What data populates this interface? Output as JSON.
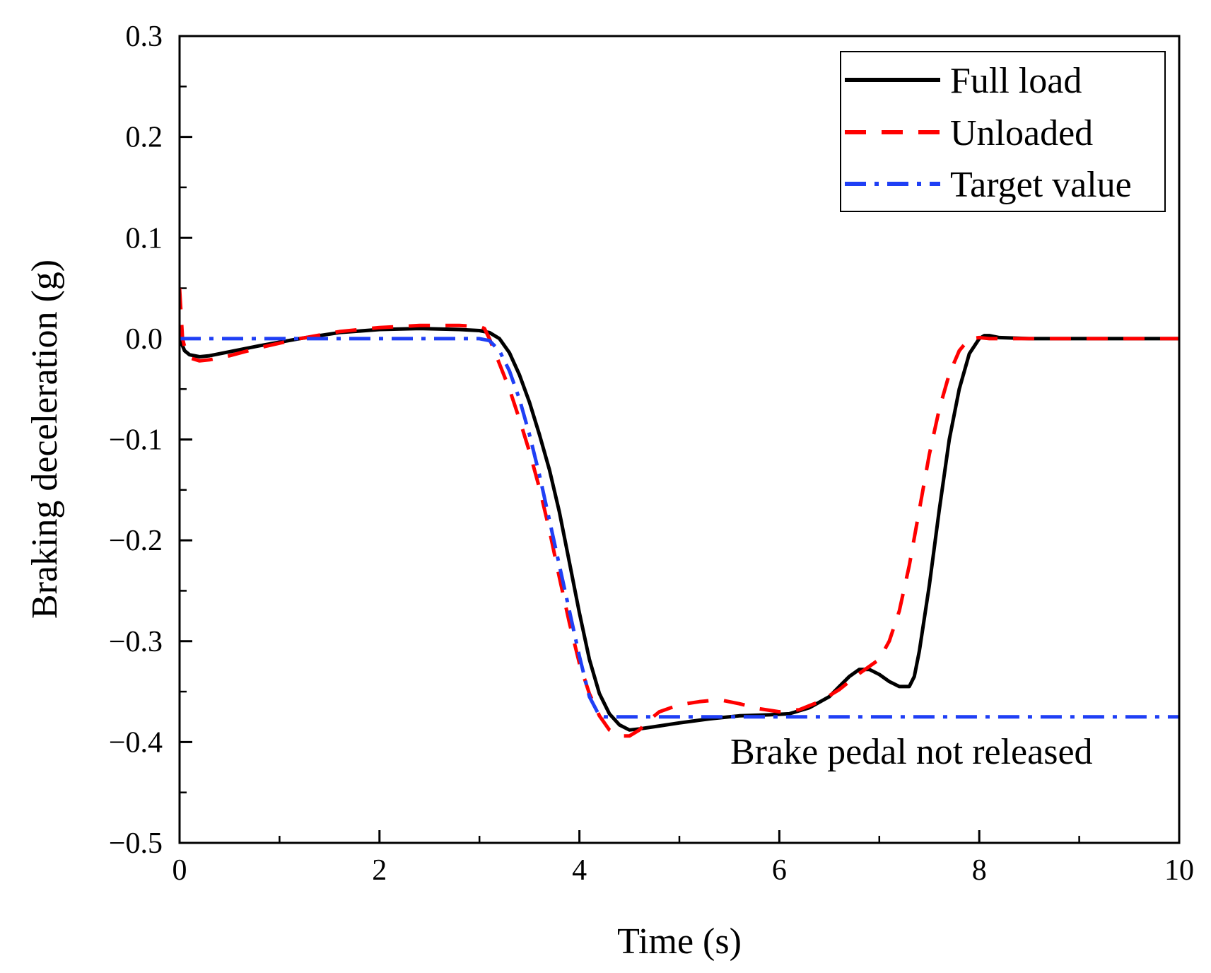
{
  "chart_data": {
    "type": "line",
    "title": "",
    "xlabel": "Time (s)",
    "ylabel": "Braking deceleration (g)",
    "xlim": [
      0,
      10
    ],
    "ylim": [
      -0.5,
      0.3
    ],
    "xticks": [
      0,
      2,
      4,
      6,
      8,
      10
    ],
    "xtick_labels": [
      "0",
      "2",
      "4",
      "6",
      "8",
      "10"
    ],
    "yticks": [
      0.3,
      0.2,
      0.1,
      0.0,
      -0.1,
      -0.2,
      -0.3,
      -0.4,
      -0.5
    ],
    "ytick_labels": [
      "0.3",
      "0.2",
      "0.1",
      "0.0",
      "−0.1",
      "−0.2",
      "−0.3",
      "−0.4",
      "−0.5"
    ],
    "grid": false,
    "legend_position": "top-right",
    "series": [
      {
        "name": "Full load",
        "color": "#000000",
        "style": "solid",
        "x": [
          0,
          0.05,
          0.1,
          0.2,
          0.3,
          0.5,
          0.8,
          1.2,
          1.6,
          2.0,
          2.4,
          2.8,
          3.0,
          3.1,
          3.2,
          3.3,
          3.4,
          3.5,
          3.6,
          3.7,
          3.8,
          3.9,
          4.0,
          4.1,
          4.2,
          4.3,
          4.4,
          4.5,
          4.6,
          4.8,
          5.0,
          5.3,
          5.6,
          5.9,
          6.1,
          6.3,
          6.5,
          6.6,
          6.7,
          6.8,
          6.9,
          7.0,
          7.1,
          7.2,
          7.3,
          7.35,
          7.4,
          7.5,
          7.6,
          7.7,
          7.8,
          7.9,
          8.0,
          8.05,
          8.1,
          8.2,
          8.5,
          9.0,
          9.5,
          10.0
        ],
        "y": [
          0.0,
          -0.012,
          -0.016,
          -0.018,
          -0.017,
          -0.013,
          -0.007,
          0.0,
          0.006,
          0.009,
          0.01,
          0.009,
          0.008,
          0.006,
          0.0,
          -0.014,
          -0.036,
          -0.063,
          -0.095,
          -0.13,
          -0.172,
          -0.222,
          -0.272,
          -0.318,
          -0.352,
          -0.372,
          -0.383,
          -0.388,
          -0.387,
          -0.384,
          -0.381,
          -0.377,
          -0.374,
          -0.373,
          -0.372,
          -0.366,
          -0.355,
          -0.345,
          -0.335,
          -0.328,
          -0.328,
          -0.333,
          -0.34,
          -0.345,
          -0.345,
          -0.335,
          -0.31,
          -0.245,
          -0.17,
          -0.1,
          -0.05,
          -0.015,
          0.0,
          0.003,
          0.003,
          0.001,
          0.0,
          0.0,
          0.0,
          0.0
        ]
      },
      {
        "name": "Unloaded",
        "color": "#ff0000",
        "style": "dashed",
        "x": [
          0,
          0.03,
          0.06,
          0.1,
          0.2,
          0.3,
          0.5,
          0.8,
          1.2,
          1.6,
          2.0,
          2.4,
          2.8,
          3.0,
          3.05,
          3.1,
          3.2,
          3.3,
          3.4,
          3.5,
          3.6,
          3.7,
          3.8,
          3.9,
          4.0,
          4.1,
          4.2,
          4.3,
          4.4,
          4.5,
          4.6,
          4.7,
          4.8,
          5.0,
          5.2,
          5.4,
          5.6,
          5.8,
          6.0,
          6.2,
          6.4,
          6.6,
          6.8,
          6.9,
          7.0,
          7.1,
          7.2,
          7.3,
          7.4,
          7.5,
          7.6,
          7.7,
          7.8,
          7.9,
          8.0,
          8.1,
          8.5,
          9.0,
          9.5,
          10.0
        ],
        "y": [
          0.05,
          0.0,
          -0.012,
          -0.019,
          -0.022,
          -0.021,
          -0.017,
          -0.009,
          0.0,
          0.007,
          0.011,
          0.013,
          0.013,
          0.012,
          0.01,
          0.0,
          -0.025,
          -0.05,
          -0.08,
          -0.112,
          -0.148,
          -0.19,
          -0.237,
          -0.282,
          -0.322,
          -0.352,
          -0.374,
          -0.388,
          -0.394,
          -0.394,
          -0.388,
          -0.378,
          -0.37,
          -0.363,
          -0.36,
          -0.358,
          -0.362,
          -0.367,
          -0.37,
          -0.368,
          -0.36,
          -0.348,
          -0.332,
          -0.325,
          -0.318,
          -0.3,
          -0.27,
          -0.225,
          -0.17,
          -0.115,
          -0.07,
          -0.035,
          -0.012,
          0.0,
          0.001,
          0.0,
          0.0,
          0.0,
          0.0,
          0.0
        ]
      },
      {
        "name": "Target value",
        "color": "#1f3ff5",
        "style": "dash-dot",
        "x": [
          0,
          1.0,
          2.0,
          3.0,
          3.1,
          3.2,
          3.3,
          3.4,
          3.5,
          3.6,
          3.7,
          3.8,
          3.9,
          4.0,
          4.1,
          4.2,
          4.25,
          4.3,
          5.0,
          6.0,
          7.0,
          8.0,
          9.0,
          10.0
        ],
        "y": [
          0.0,
          0.0,
          0.0,
          0.0,
          -0.002,
          -0.012,
          -0.032,
          -0.06,
          -0.095,
          -0.135,
          -0.18,
          -0.225,
          -0.27,
          -0.315,
          -0.355,
          -0.374,
          -0.375,
          -0.375,
          -0.375,
          -0.375,
          -0.375,
          -0.375,
          -0.375,
          -0.375
        ]
      }
    ],
    "annotations": [
      {
        "text": "Brake pedal not released",
        "x": 7.6,
        "y": -0.41
      }
    ]
  }
}
